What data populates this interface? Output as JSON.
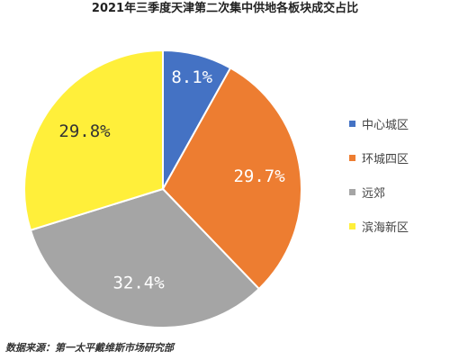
{
  "chart_data": {
    "type": "pie",
    "title": "2021年三季度天津第二次集中供地各板块成交占比",
    "categories": [
      "中心城区",
      "环城四区",
      "远郊",
      "滨海新区"
    ],
    "values": [
      8.1,
      29.7,
      32.4,
      29.8
    ],
    "labels": [
      "8.1%",
      "29.7%",
      "32.4%",
      "29.8%"
    ],
    "colors": [
      "#4472C4",
      "#ED7D31",
      "#A5A5A5",
      "#FFEF3A"
    ],
    "label_colors": [
      "#FFFFFF",
      "#FFFFFF",
      "#FFFFFF",
      "#333333"
    ],
    "legend_position": "right",
    "start": "top, clockwise"
  },
  "source": "数据来源：第一太平戴维斯市场研究部"
}
